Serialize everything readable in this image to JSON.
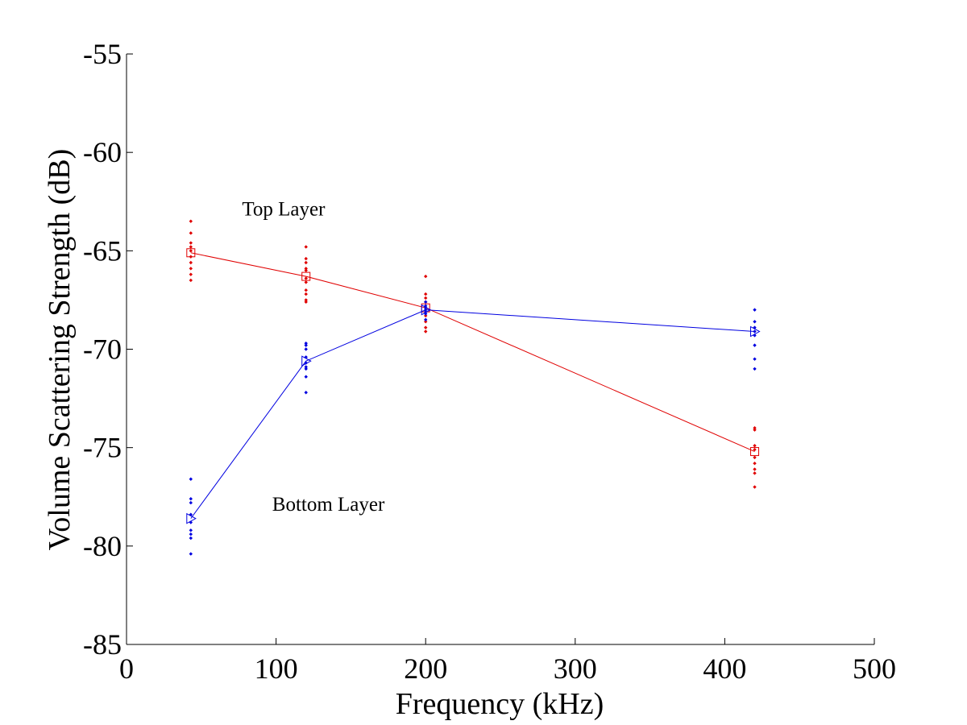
{
  "chart_data": {
    "type": "scatter",
    "title": "",
    "xlabel": "Frequency (kHz)",
    "ylabel": "Volume Scattering Strength (dB)",
    "xlim": [
      0,
      500
    ],
    "ylim": [
      -85,
      -55
    ],
    "xticks": [
      0,
      100,
      200,
      300,
      400,
      500
    ],
    "yticks": [
      -85,
      -80,
      -75,
      -70,
      -65,
      -60,
      -55
    ],
    "grid": false,
    "annotations": [
      {
        "text": "Top Layer",
        "x": 105,
        "y": -63.2
      },
      {
        "text": "Bottom Layer",
        "x": 135,
        "y": -78.2
      }
    ],
    "series": [
      {
        "color": "#e00000",
        "marker": "square",
        "line": true,
        "x": [
          43,
          120,
          200,
          420
        ],
        "y": [
          -65.1,
          -66.3,
          -67.9,
          -75.2
        ],
        "scatter_points": [
          [
            43,
            -63.5
          ],
          [
            43,
            -64.1
          ],
          [
            43,
            -64.6
          ],
          [
            43,
            -64.8
          ],
          [
            43,
            -65.0
          ],
          [
            43,
            -65.3
          ],
          [
            43,
            -65.6
          ],
          [
            43,
            -65.9
          ],
          [
            43,
            -66.2
          ],
          [
            43,
            -66.5
          ],
          [
            120,
            -64.8
          ],
          [
            120,
            -65.4
          ],
          [
            120,
            -65.6
          ],
          [
            120,
            -65.9
          ],
          [
            120,
            -66.0
          ],
          [
            120,
            -66.4
          ],
          [
            120,
            -66.6
          ],
          [
            120,
            -67.0
          ],
          [
            120,
            -67.2
          ],
          [
            120,
            -67.5
          ],
          [
            120,
            -67.6
          ],
          [
            200,
            -66.3
          ],
          [
            200,
            -67.2
          ],
          [
            200,
            -67.4
          ],
          [
            200,
            -67.6
          ],
          [
            200,
            -67.9
          ],
          [
            200,
            -68.1
          ],
          [
            200,
            -68.3
          ],
          [
            200,
            -68.6
          ],
          [
            200,
            -68.9
          ],
          [
            200,
            -69.1
          ],
          [
            420,
            -74.0
          ],
          [
            420,
            -74.1
          ],
          [
            420,
            -74.9
          ],
          [
            420,
            -75.1
          ],
          [
            420,
            -75.5
          ],
          [
            420,
            -75.8
          ],
          [
            420,
            -76.1
          ],
          [
            420,
            -76.3
          ],
          [
            420,
            -77.0
          ]
        ]
      },
      {
        "color": "#0000e0",
        "marker": "triangle-right",
        "line": true,
        "x": [
          43,
          120,
          200,
          420
        ],
        "y": [
          -78.6,
          -70.6,
          -68.0,
          -69.1
        ],
        "scatter_points": [
          [
            43,
            -76.6
          ],
          [
            43,
            -77.6
          ],
          [
            43,
            -77.8
          ],
          [
            43,
            -78.4
          ],
          [
            43,
            -78.8
          ],
          [
            43,
            -79.2
          ],
          [
            43,
            -79.4
          ],
          [
            43,
            -79.6
          ],
          [
            43,
            -80.4
          ],
          [
            120,
            -69.7
          ],
          [
            120,
            -69.8
          ],
          [
            120,
            -70.0
          ],
          [
            120,
            -70.4
          ],
          [
            120,
            -70.7
          ],
          [
            120,
            -70.9
          ],
          [
            120,
            -71.0
          ],
          [
            120,
            -71.4
          ],
          [
            120,
            -72.2
          ],
          [
            200,
            -67.6
          ],
          [
            200,
            -67.8
          ],
          [
            200,
            -67.9
          ],
          [
            200,
            -68.0
          ],
          [
            200,
            -68.1
          ],
          [
            200,
            -68.2
          ],
          [
            200,
            -68.5
          ],
          [
            420,
            -68.0
          ],
          [
            420,
            -68.6
          ],
          [
            420,
            -68.9
          ],
          [
            420,
            -69.1
          ],
          [
            420,
            -69.3
          ],
          [
            420,
            -69.8
          ],
          [
            420,
            -70.5
          ],
          [
            420,
            -71.0
          ]
        ]
      }
    ]
  }
}
